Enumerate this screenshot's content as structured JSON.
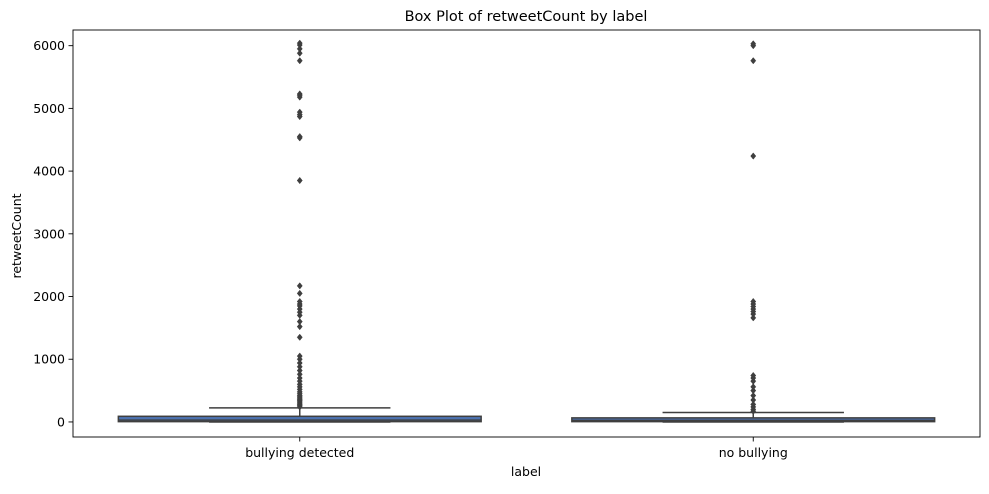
{
  "chart_data": {
    "type": "box",
    "title": "Box Plot of retweetCount by label",
    "xlabel": "label",
    "ylabel": "retweetCount",
    "ylim": [
      -240,
      6250
    ],
    "yticks": [
      0,
      1000,
      2000,
      3000,
      4000,
      5000,
      6000
    ],
    "ytick_labels": [
      "0",
      "1000",
      "2000",
      "3000",
      "4000",
      "5000",
      "6000"
    ],
    "grid": false,
    "legend": "none",
    "colors": {
      "box_fill": "#4c72b0",
      "line": "#3f3f3f",
      "flier": "#3f3f3f"
    },
    "categories": [
      "bullying detected",
      "no bullying"
    ],
    "boxes": [
      {
        "label": "bullying detected",
        "whisker_low": 0,
        "q1": 5,
        "median": 30,
        "q3": 90,
        "whisker_high": 225,
        "outliers": [
          240,
          260,
          280,
          300,
          320,
          340,
          360,
          380,
          400,
          420,
          450,
          480,
          520,
          560,
          600,
          650,
          700,
          760,
          820,
          880,
          940,
          1000,
          1050,
          1350,
          1520,
          1600,
          1700,
          1750,
          1800,
          1850,
          1880,
          1920,
          2050,
          2170,
          3850,
          4530,
          4550,
          4870,
          4900,
          4940,
          5180,
          5210,
          5230,
          5760,
          5880,
          5950,
          6010,
          6040
        ]
      },
      {
        "label": "no bullying",
        "whisker_low": 0,
        "q1": 5,
        "median": 25,
        "q3": 65,
        "whisker_high": 150,
        "outliers": [
          170,
          200,
          240,
          280,
          350,
          420,
          500,
          560,
          650,
          700,
          740,
          1660,
          1720,
          1760,
          1800,
          1840,
          1880,
          1920,
          4240,
          5760,
          6000,
          6030
        ]
      }
    ]
  }
}
